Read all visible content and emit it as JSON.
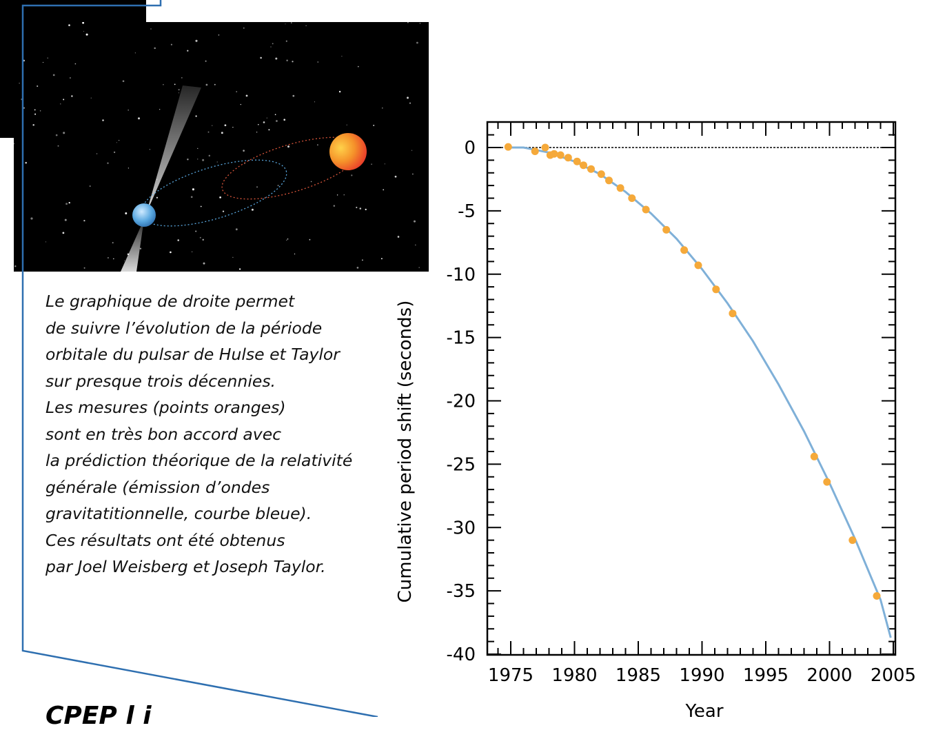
{
  "caption": {
    "lines": [
      "Le graphique de droite permet",
      "de suivre l’évolution de la période",
      "orbitale du pulsar de Hulse et Taylor",
      "sur presque trois décennies.",
      "Les mesures (points oranges)",
      "sont en très bon accord avec",
      "la prédiction théorique de la relativité",
      "générale (émission d’ondes",
      "gravitatitionnelle, courbe bleue).",
      "Ces résultats ont été obtenus",
      "par Joel Weisberg et Joseph Taylor."
    ]
  },
  "footer_partial_text": "CPEP  l  i",
  "colors": {
    "frame_line": "#2e6fb0",
    "points": "#f5a93a",
    "curve": "#7fb0d8",
    "space_bg": "#000000",
    "pulsar": "#5aa8e0",
    "companion": "#f06a2a"
  },
  "chart_data": {
    "type": "scatter",
    "xlabel": "Year",
    "ylabel": "Cumulative period shift (seconds)",
    "xlim": [
      1973,
      2005
    ],
    "ylim": [
      -40,
      2
    ],
    "xticks": [
      "1975",
      "1980",
      "1985",
      "1990",
      "1995",
      "2000",
      "2005"
    ],
    "yticks": [
      "0",
      "-5",
      "-10",
      "-15",
      "-20",
      "-25",
      "-30",
      "-35",
      "-40"
    ],
    "zero_line": true,
    "series": [
      {
        "kind": "points",
        "x": [
          1974.8,
          1976.9,
          1977.7,
          1978.1,
          1978.4,
          1978.9,
          1979.5,
          1980.2,
          1980.7,
          1981.3,
          1982.1,
          1982.7,
          1983.6,
          1984.5,
          1985.6,
          1987.2,
          1988.6,
          1989.7,
          1991.1,
          1992.4,
          1998.8,
          1999.8,
          2001.8,
          2003.7
        ],
        "y": [
          0.05,
          -0.3,
          0.0,
          -0.6,
          -0.5,
          -0.6,
          -0.8,
          -1.1,
          -1.4,
          -1.7,
          -2.1,
          -2.6,
          -3.2,
          -4.0,
          -4.9,
          -6.5,
          -8.1,
          -9.3,
          -11.2,
          -13.1,
          -24.4,
          -26.4,
          -31.0,
          -35.4
        ]
      },
      {
        "kind": "curve",
        "x": [
          1974.8,
          1976,
          1978,
          1980,
          1982,
          1984,
          1986,
          1988,
          1990,
          1992,
          1994,
          1996,
          1998,
          2000,
          2002,
          2004,
          2004.8
        ],
        "y": [
          0.0,
          0.0,
          -0.4,
          -1.1,
          -2.1,
          -3.5,
          -5.2,
          -7.2,
          -9.6,
          -12.3,
          -15.3,
          -18.7,
          -22.4,
          -26.5,
          -30.9,
          -35.7,
          -38.7
        ]
      }
    ]
  }
}
